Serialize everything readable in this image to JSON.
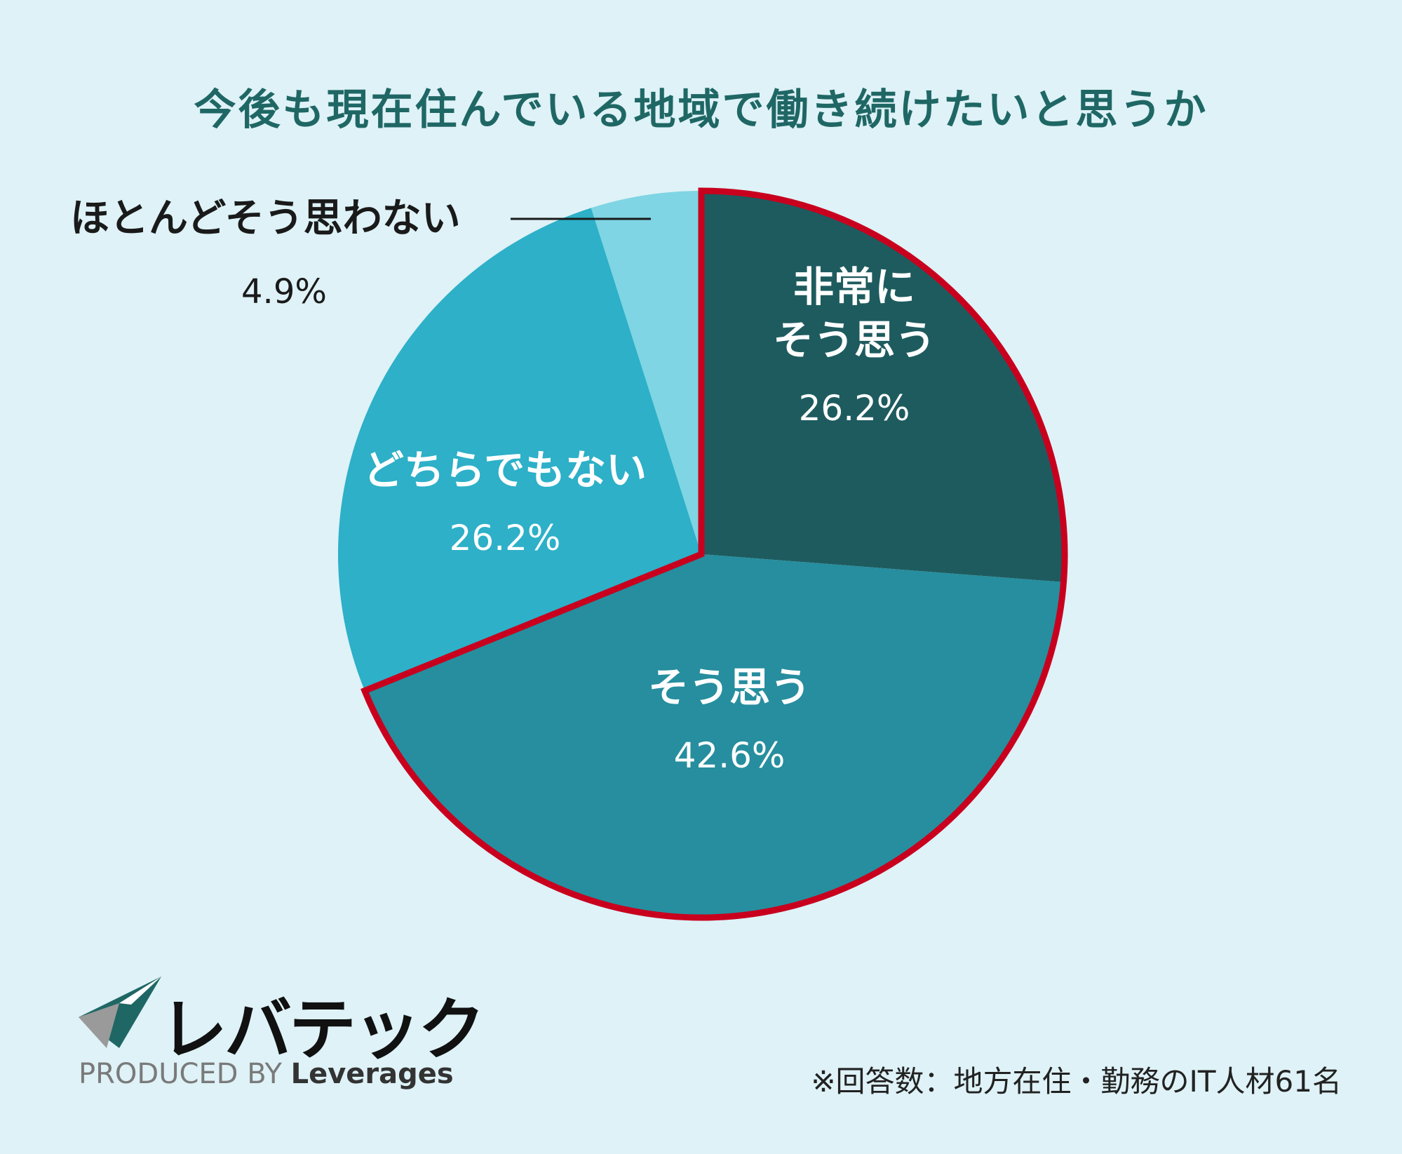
{
  "title": "今後も現在住んでいる地域で働き続けたいと思うか",
  "footnote": "※回答数：地方在住・勤務のIT人材61名",
  "logo": {
    "name": "レバテック",
    "produced_prefix": "PRODUCED BY",
    "produced_brand": "Leverages"
  },
  "chart_data": {
    "type": "pie",
    "title": "今後も現在住んでいる地域で働き続けたいと思うか",
    "slices": [
      {
        "label": "非常に\nそう思う",
        "value": 26.2,
        "value_text": "26.2%",
        "color": "#1e5b5f",
        "highlighted": true
      },
      {
        "label": "そう思う",
        "value": 42.6,
        "value_text": "42.6%",
        "color": "#268e9e",
        "highlighted": true
      },
      {
        "label": "どちらでもない",
        "value": 26.2,
        "value_text": "26.2%",
        "color": "#2db0c8",
        "highlighted": false
      },
      {
        "label": "ほとんどそう思わない",
        "value": 4.9,
        "value_text": "4.9%",
        "color": "#7fd5e3",
        "highlighted": false
      }
    ],
    "highlight_color": "#c8001e",
    "label_text_color": "#ffffff",
    "outside_label_color": "#1a1a1a"
  }
}
